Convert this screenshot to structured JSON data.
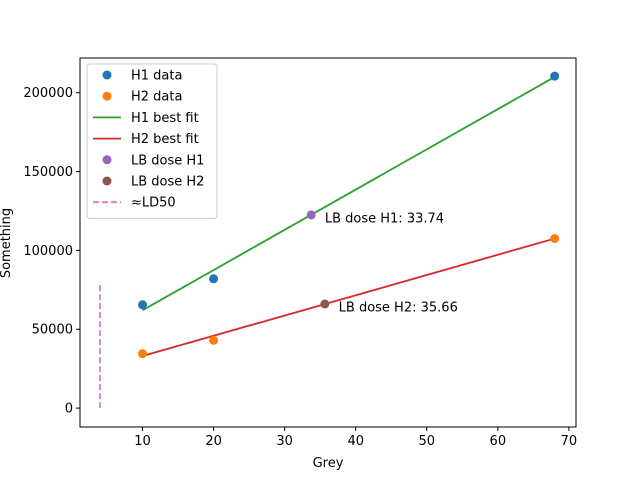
{
  "chart_data": {
    "type": "scatter",
    "xlabel": "Grey",
    "ylabel": "Something",
    "xlim": [
      1.2,
      71.0
    ],
    "ylim": [
      -12000,
      222000
    ],
    "xticks": [
      10,
      20,
      30,
      40,
      50,
      60,
      70
    ],
    "yticks": [
      0,
      50000,
      100000,
      150000,
      200000
    ],
    "series": [
      {
        "name": "H1 data",
        "kind": "points",
        "color": "#1f77b4",
        "x": [
          10,
          20,
          68
        ],
        "y": [
          65500,
          82000,
          210500
        ]
      },
      {
        "name": "H2 data",
        "kind": "points",
        "color": "#ff7f0e",
        "x": [
          10,
          20,
          68
        ],
        "y": [
          34500,
          43000,
          107500
        ]
      },
      {
        "name": "H1 best fit",
        "kind": "line",
        "color": "#2ca02c",
        "x": [
          10,
          68
        ],
        "y": [
          62000,
          210000
        ]
      },
      {
        "name": "H2 best fit",
        "kind": "line",
        "color": "#d62728",
        "x": [
          10,
          68
        ],
        "y": [
          33000,
          107500
        ]
      },
      {
        "name": "LB dose H1",
        "kind": "points",
        "color": "#9467bd",
        "x": [
          33.74
        ],
        "y": [
          122500
        ]
      },
      {
        "name": "LB dose H2",
        "kind": "points",
        "color": "#8c564b",
        "x": [
          35.66
        ],
        "y": [
          66000
        ]
      },
      {
        "name": "≈LD50",
        "kind": "dashed",
        "color": "#e377c2",
        "x": [
          4,
          4
        ],
        "y": [
          0,
          80000
        ]
      }
    ],
    "annotations": [
      {
        "text": "LB dose H1: 33.74",
        "x": 35.66,
        "y": 120500
      },
      {
        "text": "LB dose H2: 35.66",
        "x": 37.6,
        "y": 64000
      }
    ],
    "legend_position": "top-left",
    "grid": false
  }
}
